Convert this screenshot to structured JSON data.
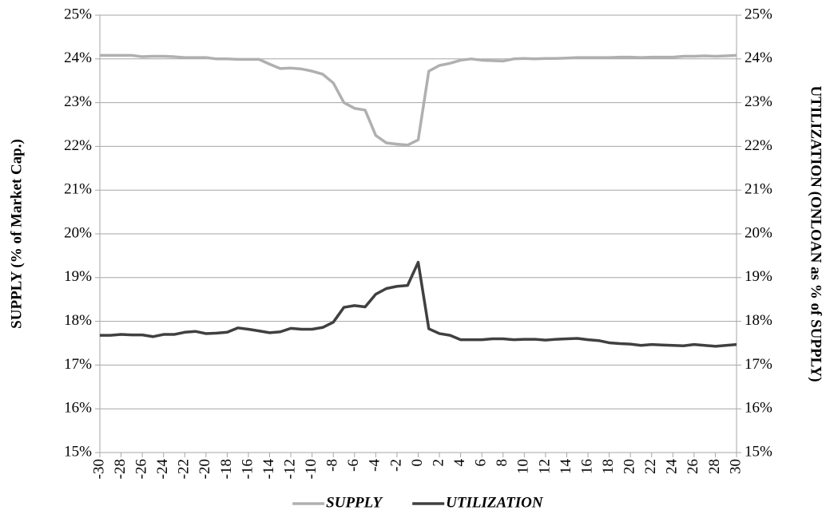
{
  "chart_data": {
    "type": "line",
    "y_label": "SUPPLY (% of Market Cap.)",
    "y2_label": "UTILIZATION (ONLOAN as % of SUPPLY)",
    "x": [
      -30,
      -29,
      -28,
      -27,
      -26,
      -25,
      -24,
      -23,
      -22,
      -21,
      -20,
      -19,
      -18,
      -17,
      -16,
      -15,
      -14,
      -13,
      -12,
      -11,
      -10,
      -9,
      -8,
      -7,
      -6,
      -5,
      -4,
      -3,
      -2,
      -1,
      0,
      1,
      2,
      3,
      4,
      5,
      6,
      7,
      8,
      9,
      10,
      11,
      12,
      13,
      14,
      15,
      16,
      17,
      18,
      19,
      20,
      21,
      22,
      23,
      24,
      25,
      26,
      27,
      28,
      29,
      30
    ],
    "series": [
      {
        "name": "SUPPLY",
        "color": "#b0b0b0",
        "axis": "y",
        "values": [
          24.08,
          24.08,
          24.08,
          24.08,
          24.05,
          24.06,
          24.06,
          24.05,
          24.03,
          24.03,
          24.03,
          24.0,
          24.0,
          23.99,
          23.99,
          23.99,
          23.88,
          23.78,
          23.79,
          23.77,
          23.72,
          23.65,
          23.45,
          23.0,
          22.87,
          22.83,
          22.25,
          22.08,
          22.05,
          22.03,
          22.15,
          23.72,
          23.85,
          23.9,
          23.97,
          24.0,
          23.97,
          23.96,
          23.95,
          24.0,
          24.01,
          24.0,
          24.01,
          24.01,
          24.02,
          24.03,
          24.03,
          24.03,
          24.03,
          24.04,
          24.04,
          24.03,
          24.04,
          24.04,
          24.04,
          24.06,
          24.06,
          24.07,
          24.06,
          24.07,
          24.08
        ]
      },
      {
        "name": "UTILIZATION",
        "color": "#404040",
        "axis": "y2",
        "values": [
          17.68,
          17.68,
          17.7,
          17.69,
          17.69,
          17.65,
          17.7,
          17.7,
          17.75,
          17.77,
          17.72,
          17.73,
          17.75,
          17.85,
          17.82,
          17.78,
          17.74,
          17.76,
          17.84,
          17.82,
          17.82,
          17.86,
          17.98,
          18.32,
          18.36,
          18.33,
          18.62,
          18.75,
          18.8,
          18.82,
          19.35,
          17.83,
          17.72,
          17.68,
          17.58,
          17.58,
          17.58,
          17.6,
          17.6,
          17.58,
          17.59,
          17.59,
          17.57,
          17.59,
          17.6,
          17.61,
          17.58,
          17.56,
          17.51,
          17.49,
          17.48,
          17.45,
          17.47,
          17.46,
          17.45,
          17.44,
          17.47,
          17.45,
          17.43,
          17.45,
          17.47
        ]
      }
    ],
    "xlim": [
      -30,
      30
    ],
    "xticks": [
      -30,
      -28,
      -26,
      -24,
      -22,
      -20,
      -18,
      -16,
      -14,
      -12,
      -10,
      -8,
      -6,
      -4,
      -2,
      0,
      2,
      4,
      6,
      8,
      10,
      12,
      14,
      16,
      18,
      20,
      22,
      24,
      26,
      28,
      30
    ],
    "ylim": [
      15,
      25
    ],
    "yticks": [
      {
        "value": 15,
        "label": "15%"
      },
      {
        "value": 16,
        "label": "16%"
      },
      {
        "value": 17,
        "label": "17%"
      },
      {
        "value": 18,
        "label": "18%"
      },
      {
        "value": 19,
        "label": "19%"
      },
      {
        "value": 20,
        "label": "20%"
      },
      {
        "value": 21,
        "label": "21%"
      },
      {
        "value": 22,
        "label": "22%"
      },
      {
        "value": 23,
        "label": "23%"
      },
      {
        "value": 24,
        "label": "24%"
      },
      {
        "value": 25,
        "label": "25%"
      }
    ],
    "y2lim": [
      15,
      25
    ],
    "y2ticks": [
      {
        "value": 15,
        "label": "15%"
      },
      {
        "value": 16,
        "label": "16%"
      },
      {
        "value": 17,
        "label": "17%"
      },
      {
        "value": 18,
        "label": "18%"
      },
      {
        "value": 19,
        "label": "19%"
      },
      {
        "value": 20,
        "label": "20%"
      },
      {
        "value": 21,
        "label": "21%"
      },
      {
        "value": 22,
        "label": "22%"
      },
      {
        "value": 23,
        "label": "23%"
      },
      {
        "value": 24,
        "label": "24%"
      },
      {
        "value": 25,
        "label": "25%"
      }
    ],
    "grid": true,
    "legend": "bottom"
  }
}
